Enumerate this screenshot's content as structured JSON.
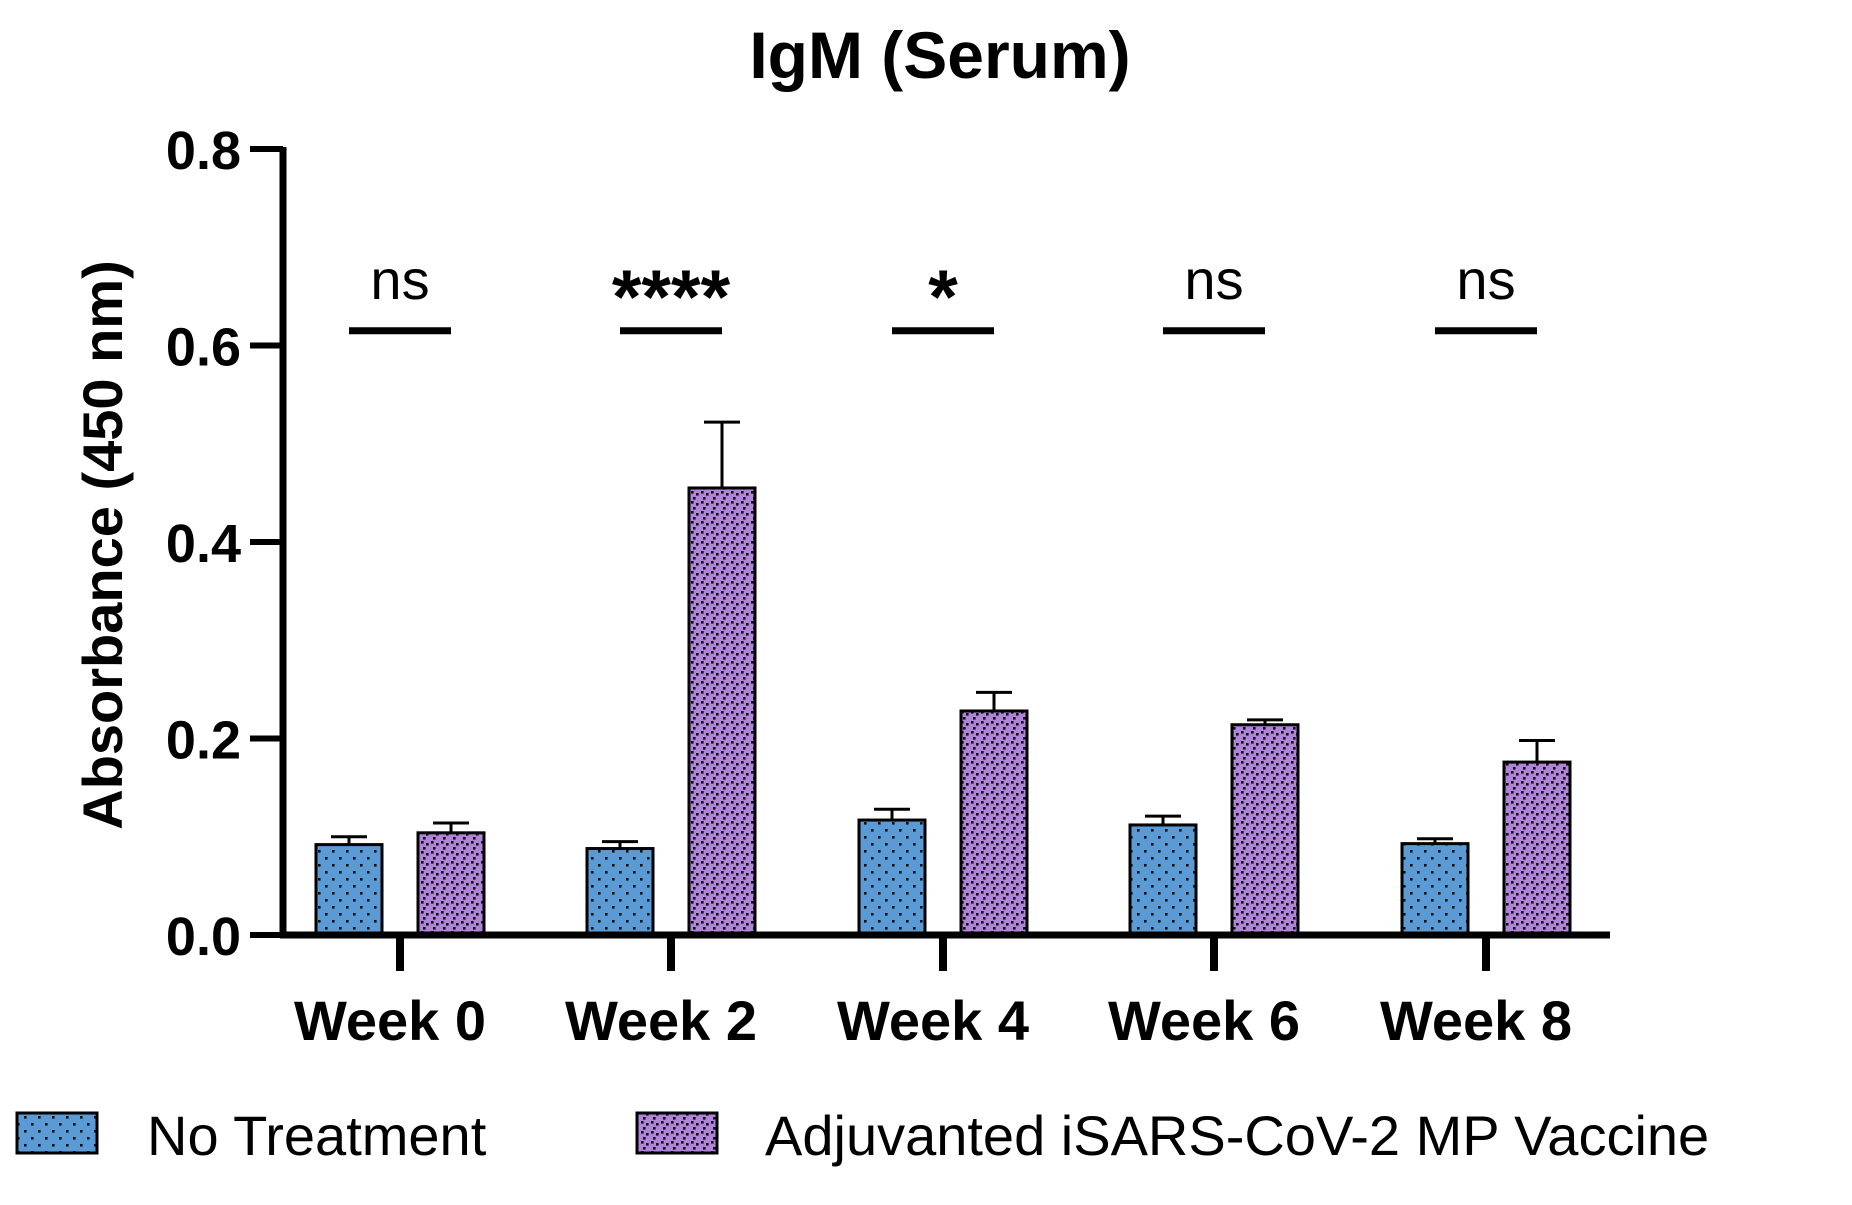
{
  "chart_data": {
    "type": "bar",
    "title": "IgM (Serum)",
    "xlabel": "",
    "ylabel": "Absorbance (450 nm)",
    "ylim": [
      0,
      0.8
    ],
    "yticks": [
      0.0,
      0.2,
      0.4,
      0.6,
      0.8
    ],
    "ytick_labels": [
      "0.0",
      "0.2",
      "0.4",
      "0.6",
      "0.8"
    ],
    "categories": [
      "Week 0",
      "Week 2",
      "Week 4",
      "Week 6",
      "Week 8"
    ],
    "series": [
      {
        "name": "No Treatment",
        "color": "#5b9bd5",
        "pattern": "sparse-dots",
        "values": [
          0.092,
          0.088,
          0.117,
          0.112,
          0.093
        ],
        "errors": [
          0.008,
          0.007,
          0.011,
          0.009,
          0.005
        ]
      },
      {
        "name": "Adjuvanted iSARS-CoV-2 MP Vaccine",
        "color": "#b084d8",
        "pattern": "dense-dots",
        "values": [
          0.104,
          0.455,
          0.228,
          0.214,
          0.176
        ],
        "errors": [
          0.01,
          0.067,
          0.019,
          0.005,
          0.022
        ]
      }
    ],
    "significance": [
      "ns",
      "****",
      "*",
      "ns",
      "ns"
    ],
    "significance_level": 0.615,
    "legend_position": "bottom",
    "grid": false
  }
}
